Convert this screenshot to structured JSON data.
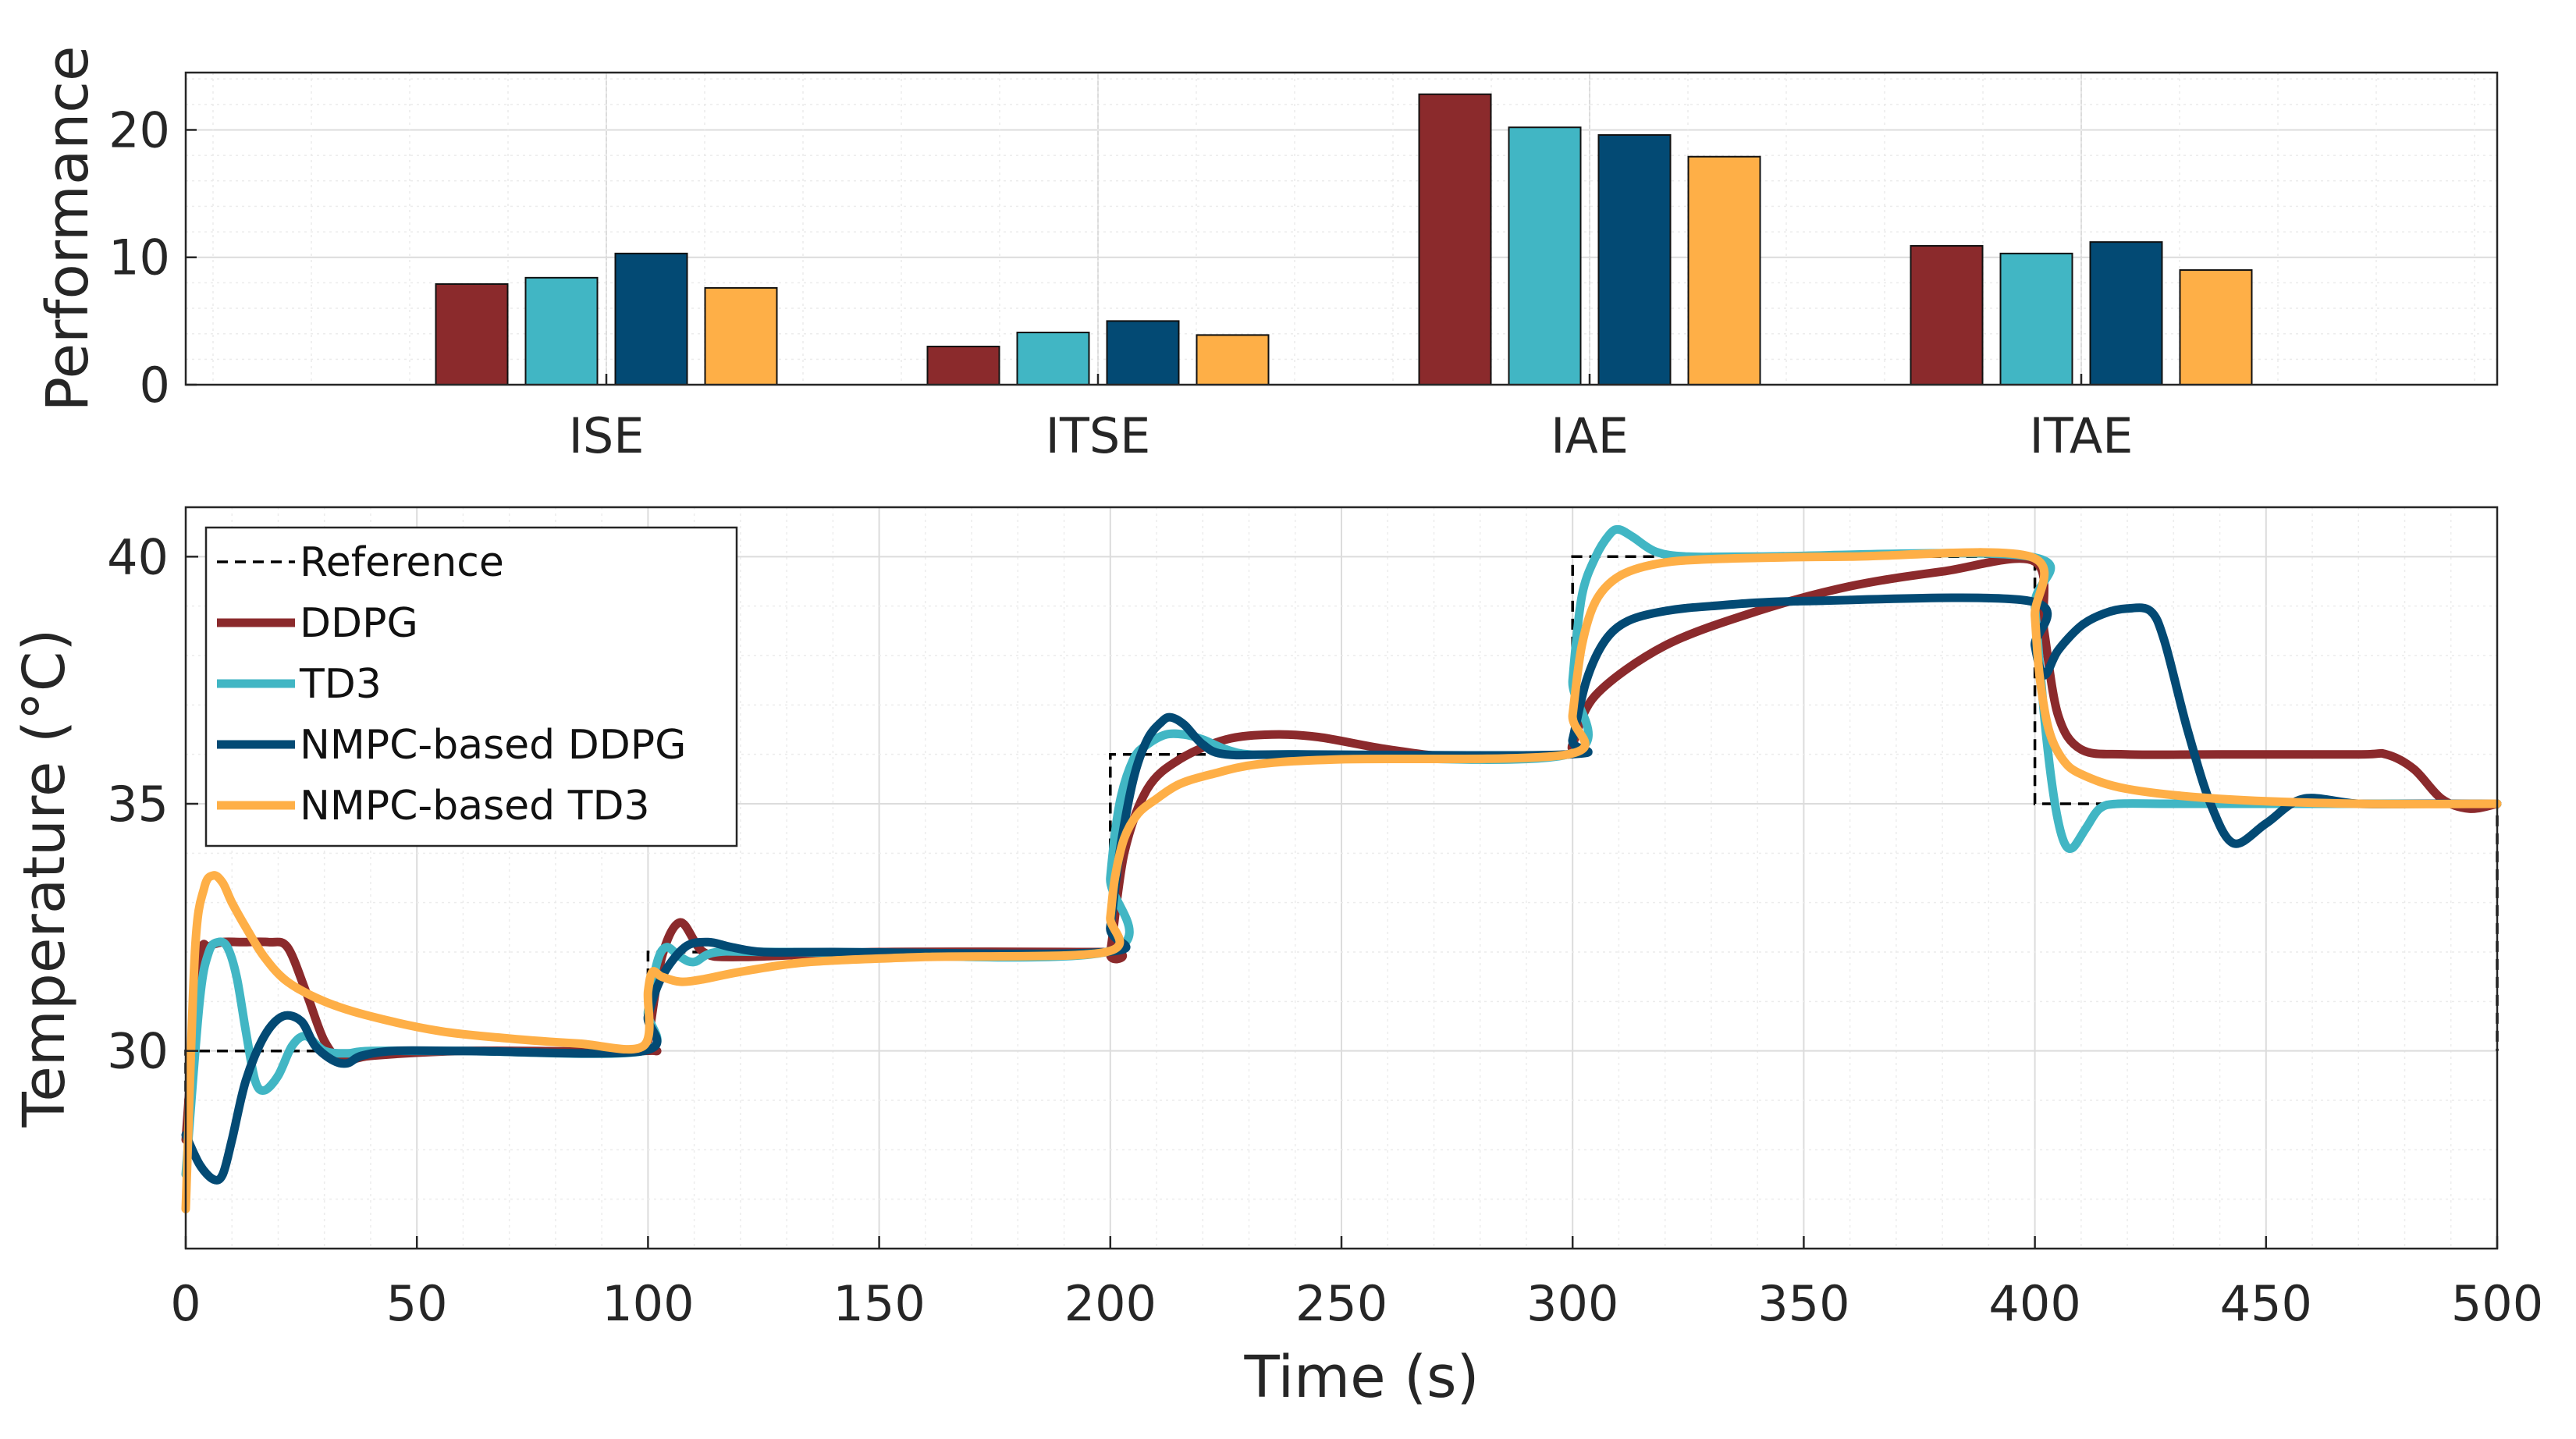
{
  "colors": {
    "ddpg": "#8B2A2C",
    "td3": "#41B6C4",
    "nmpc_ddpg": "#034A74",
    "nmpc_td3": "#FEAF47",
    "reference": "#000000"
  },
  "chart_data": [
    {
      "type": "bar",
      "ylabel": "Performance",
      "xlabel": "",
      "categories": [
        "ISE",
        "ITSE",
        "IAE",
        "ITAE"
      ],
      "ylim": [
        0,
        24.5
      ],
      "yticks": [
        "0",
        "10",
        "20"
      ],
      "grid": true,
      "series": [
        {
          "name": "DDPG",
          "values": [
            7.9,
            3.0,
            22.8,
            10.9
          ]
        },
        {
          "name": "TD3",
          "values": [
            8.4,
            4.1,
            20.2,
            10.3
          ]
        },
        {
          "name": "NMPC-based DDPG",
          "values": [
            10.3,
            5.0,
            19.6,
            11.2
          ]
        },
        {
          "name": "NMPC-based TD3",
          "values": [
            7.6,
            3.9,
            17.9,
            9.0
          ]
        }
      ]
    },
    {
      "type": "line",
      "xlabel": "Time (s)",
      "ylabel": "Temperature (°C)",
      "xlim": [
        0,
        500
      ],
      "ylim": [
        26,
        41
      ],
      "xticks": [
        "0",
        "50",
        "100",
        "150",
        "200",
        "250",
        "300",
        "350",
        "400",
        "450",
        "500"
      ],
      "yticks": [
        "30",
        "35",
        "40"
      ],
      "grid": true,
      "legend_position": "top-left",
      "series": [
        {
          "name": "Reference",
          "style": "dashed",
          "x": [
            0,
            0,
            100,
            100,
            200,
            200,
            300,
            300,
            400,
            400,
            500,
            500
          ],
          "y": [
            27,
            30,
            30,
            32,
            32,
            36,
            36,
            40,
            40,
            35,
            35,
            30
          ]
        },
        {
          "name": "DDPG",
          "x": [
            0,
            3,
            5,
            8,
            12,
            18,
            22,
            26,
            30,
            34,
            40,
            60,
            99,
            100,
            103,
            107,
            112,
            120,
            150,
            199,
            200,
            203,
            208,
            215,
            225,
            235,
            245,
            260,
            275,
            299,
            300,
            305,
            320,
            340,
            360,
            380,
            400,
            402,
            405,
            410,
            420,
            440,
            470,
            476,
            482,
            488,
            494,
            500
          ],
          "y": [
            28.2,
            31.8,
            32.1,
            32.2,
            32.2,
            32.2,
            32.1,
            31.2,
            30.2,
            29.8,
            29.9,
            30.0,
            30.0,
            30.2,
            31.9,
            32.6,
            32.0,
            31.9,
            32.0,
            32.0,
            32.0,
            34.0,
            35.3,
            35.9,
            36.3,
            36.4,
            36.35,
            36.1,
            35.95,
            36.0,
            36.2,
            37.2,
            38.2,
            38.9,
            39.4,
            39.7,
            39.9,
            38.5,
            36.8,
            36.1,
            36.0,
            36.0,
            36.0,
            36.0,
            35.7,
            35.1,
            34.9,
            35.0
          ]
        },
        {
          "name": "TD3",
          "x": [
            0,
            3,
            5,
            7,
            9,
            11,
            13,
            15,
            17,
            20,
            23,
            26,
            30,
            35,
            40,
            60,
            99,
            100,
            102,
            104,
            107,
            110,
            115,
            130,
            199,
            200,
            202,
            205,
            208,
            212,
            216,
            220,
            225,
            230,
            240,
            299,
            300,
            302,
            305,
            308,
            310,
            313,
            318,
            325,
            340,
            399,
            400,
            402,
            404,
            406,
            408,
            411,
            414,
            418,
            430,
            460,
            500
          ],
          "y": [
            27.5,
            31.0,
            32.0,
            32.2,
            32.1,
            31.5,
            30.4,
            29.4,
            29.2,
            29.5,
            30.1,
            30.3,
            30.0,
            29.95,
            30.0,
            30.0,
            30.0,
            30.8,
            31.8,
            32.1,
            31.9,
            31.8,
            32.0,
            32.0,
            32.0,
            33.5,
            35.0,
            35.9,
            36.2,
            36.4,
            36.4,
            36.3,
            36.1,
            36.0,
            36.0,
            36.0,
            37.5,
            39.2,
            40.0,
            40.45,
            40.55,
            40.4,
            40.1,
            40.0,
            40.0,
            40.0,
            39.0,
            36.8,
            35.2,
            34.3,
            34.1,
            34.5,
            34.9,
            35.0,
            35.0,
            35.0,
            35.0
          ]
        },
        {
          "name": "NMPC-based DDPG",
          "x": [
            0,
            3,
            6,
            8,
            10,
            13,
            17,
            21,
            25,
            28,
            32,
            35,
            38,
            45,
            60,
            99,
            100,
            103,
            108,
            113,
            118,
            125,
            140,
            199,
            200,
            202,
            205,
            208,
            211,
            213,
            216,
            220,
            225,
            240,
            299,
            300,
            303,
            307,
            312,
            320,
            330,
            350,
            399,
            400,
            402,
            405,
            410,
            415,
            420,
            425,
            428,
            433,
            438,
            443,
            450,
            458,
            470,
            485,
            500
          ],
          "y": [
            28.3,
            27.7,
            27.4,
            27.5,
            28.2,
            29.4,
            30.3,
            30.7,
            30.6,
            30.1,
            29.8,
            29.75,
            29.9,
            30.0,
            30.0,
            30.0,
            30.7,
            31.5,
            32.1,
            32.2,
            32.1,
            32.0,
            32.0,
            32.0,
            32.5,
            34.0,
            35.5,
            36.3,
            36.65,
            36.75,
            36.6,
            36.2,
            36.0,
            36.0,
            36.0,
            36.3,
            37.5,
            38.3,
            38.7,
            38.9,
            39.0,
            39.1,
            39.1,
            38.2,
            37.6,
            38.1,
            38.6,
            38.85,
            38.95,
            38.9,
            38.3,
            36.5,
            35.0,
            34.2,
            34.6,
            35.1,
            35.0,
            35.0,
            35.0
          ]
        },
        {
          "name": "NMPC-based TD3",
          "x": [
            0,
            2,
            4,
            6,
            8,
            10,
            13,
            17,
            22,
            30,
            40,
            55,
            70,
            85,
            99,
            100,
            101,
            103,
            107,
            112,
            120,
            135,
            160,
            199,
            200,
            201,
            203,
            206,
            210,
            215,
            222,
            232,
            250,
            299,
            300,
            302,
            305,
            310,
            318,
            330,
            360,
            399,
            400,
            401,
            403,
            406,
            410,
            420,
            440,
            470,
            500
          ],
          "y": [
            26.8,
            32.0,
            33.3,
            33.55,
            33.4,
            33.0,
            32.5,
            31.9,
            31.4,
            31.0,
            30.7,
            30.4,
            30.25,
            30.15,
            30.1,
            31.2,
            31.6,
            31.5,
            31.4,
            31.45,
            31.6,
            31.8,
            31.9,
            32.0,
            32.7,
            33.5,
            34.3,
            34.8,
            35.1,
            35.4,
            35.6,
            35.8,
            35.9,
            36.0,
            36.8,
            38.2,
            39.1,
            39.6,
            39.85,
            39.95,
            40.0,
            40.0,
            38.8,
            37.6,
            36.5,
            35.9,
            35.6,
            35.3,
            35.1,
            35.0,
            35.0
          ]
        }
      ]
    }
  ]
}
